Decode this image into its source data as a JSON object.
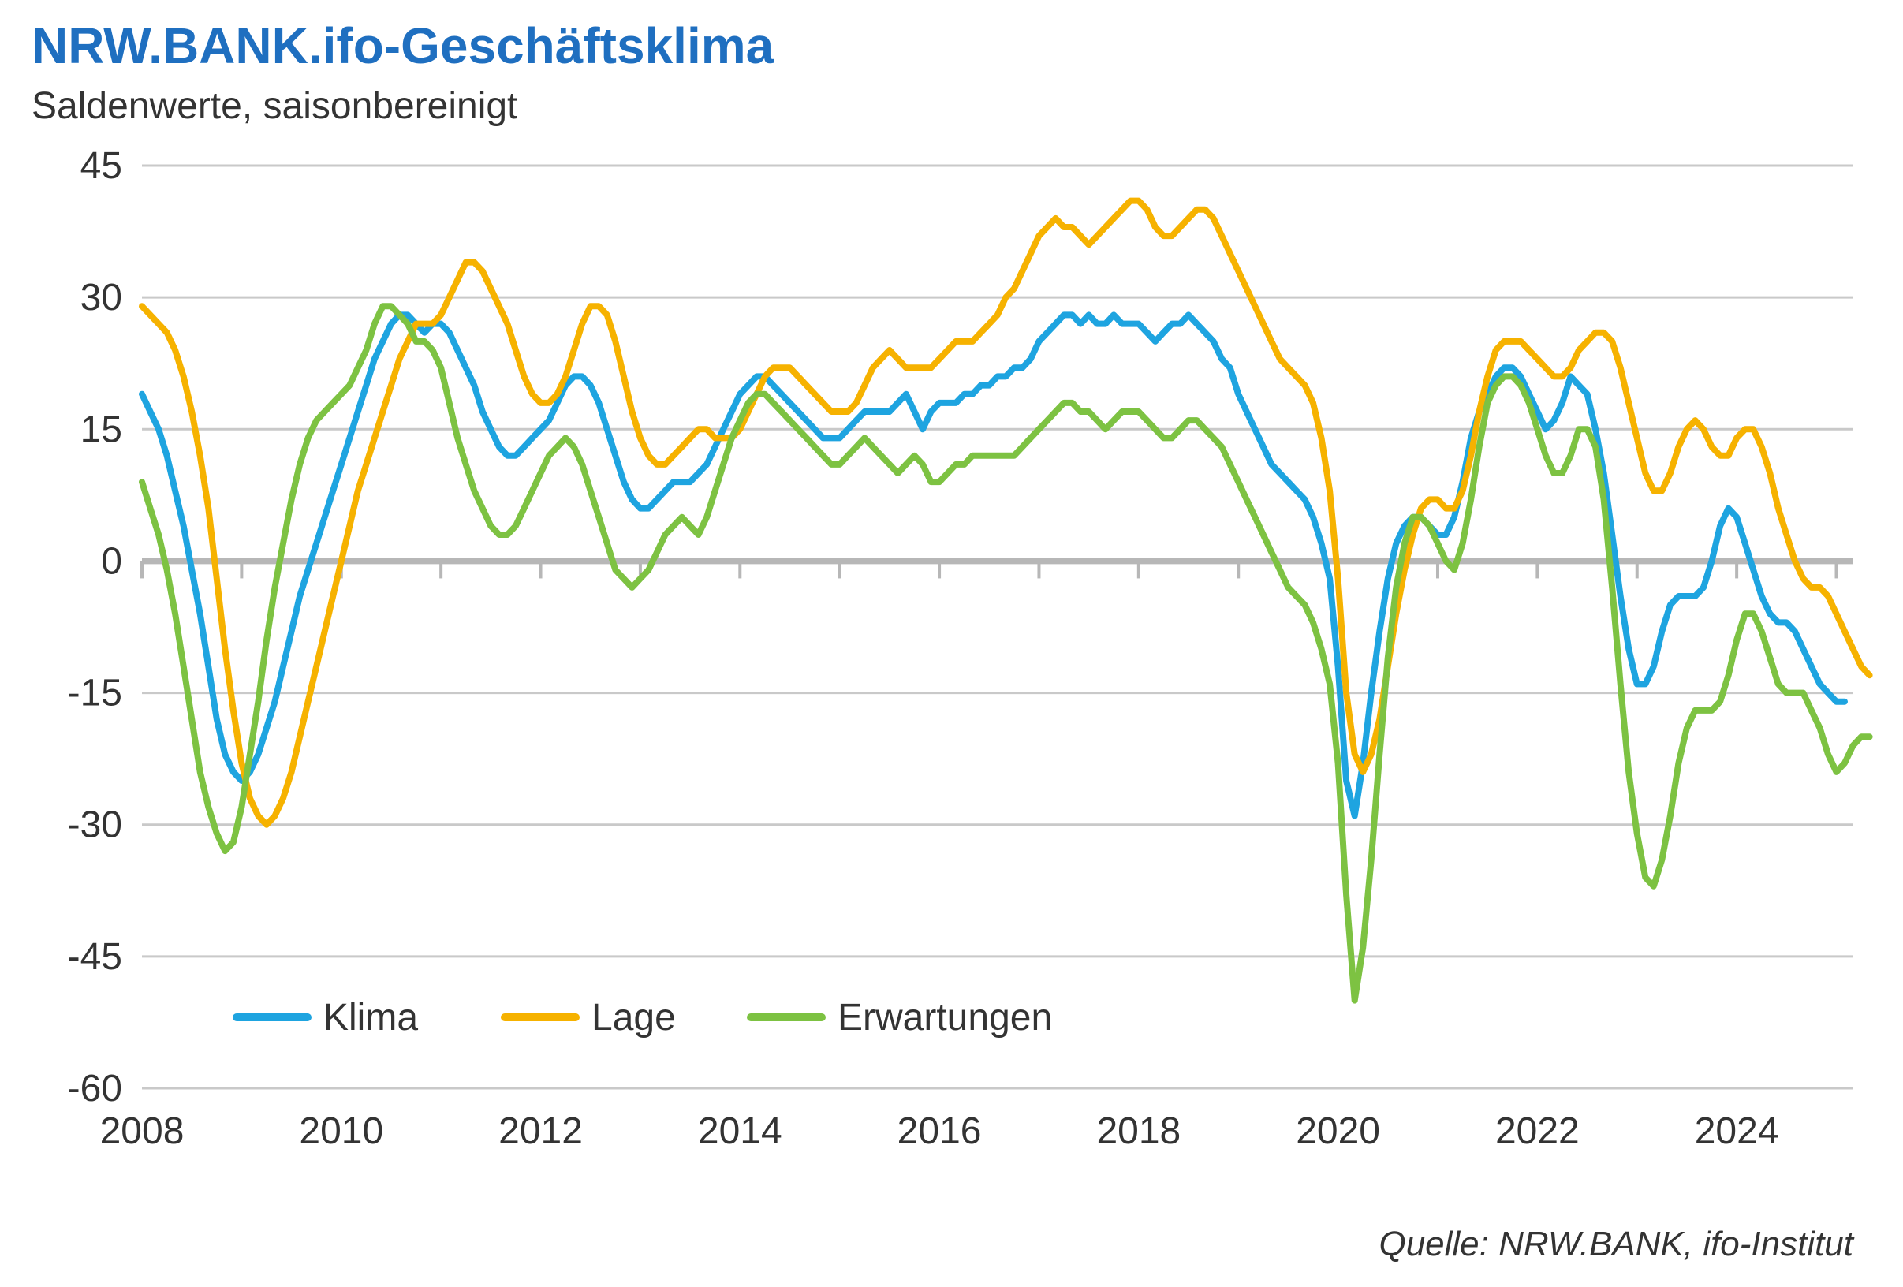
{
  "chart": {
    "type": "line",
    "title": "NRW.BANK.ifo-Geschäftsklima",
    "subtitle": "Saldenwerte, saisonbereinigt",
    "source": "Quelle: NRW.BANK, ifo-Institut",
    "background_color": "#ffffff",
    "grid_color": "#c9c9c9",
    "zero_line_color": "#b7b7b7",
    "title_color": "#1f6fc0",
    "text_color": "#333333",
    "title_fontsize": 64,
    "subtitle_fontsize": 48,
    "axis_fontsize": 48,
    "legend_fontsize": 48,
    "source_fontsize": 44,
    "line_width": 8,
    "xlim": [
      2008,
      2025.17
    ],
    "ylim": [
      -60,
      45
    ],
    "xticks": [
      2008,
      2010,
      2012,
      2014,
      2016,
      2018,
      2020,
      2022,
      2024
    ],
    "yticks": [
      -60,
      -45,
      -30,
      -15,
      0,
      15,
      30,
      45
    ],
    "xtick_minor_step": 1,
    "legend": {
      "entries": [
        {
          "label": "Klima",
          "color": "#1ea4e0"
        },
        {
          "label": "Lage",
          "color": "#f6b200"
        },
        {
          "label": "Erwartungen",
          "color": "#7dc242"
        }
      ]
    },
    "x_start": 2008,
    "x_step_months": 1,
    "series": [
      {
        "name": "Klima",
        "color": "#1ea4e0",
        "values": [
          19,
          17,
          15,
          12,
          8,
          4,
          -1,
          -6,
          -12,
          -18,
          -22,
          -24,
          -25,
          -24,
          -22,
          -19,
          -16,
          -12,
          -8,
          -4,
          -1,
          2,
          5,
          8,
          11,
          14,
          17,
          20,
          23,
          25,
          27,
          28,
          28,
          27,
          26,
          27,
          27,
          26,
          24,
          22,
          20,
          17,
          15,
          13,
          12,
          12,
          13,
          14,
          15,
          16,
          18,
          20,
          21,
          21,
          20,
          18,
          15,
          12,
          9,
          7,
          6,
          6,
          7,
          8,
          9,
          9,
          9,
          10,
          11,
          13,
          15,
          17,
          19,
          20,
          21,
          21,
          20,
          19,
          18,
          17,
          16,
          15,
          14,
          14,
          14,
          15,
          16,
          17,
          17,
          17,
          17,
          18,
          19,
          17,
          15,
          17,
          18,
          18,
          18,
          19,
          19,
          20,
          20,
          21,
          21,
          22,
          22,
          23,
          25,
          26,
          27,
          28,
          28,
          27,
          28,
          27,
          27,
          28,
          27,
          27,
          27,
          26,
          25,
          26,
          27,
          27,
          28,
          27,
          26,
          25,
          23,
          22,
          19,
          17,
          15,
          13,
          11,
          10,
          9,
          8,
          7,
          5,
          2,
          -2,
          -12,
          -25,
          -29,
          -23,
          -15,
          -8,
          -2,
          2,
          4,
          5,
          5,
          4,
          3,
          3,
          5,
          9,
          14,
          17,
          19,
          21,
          22,
          22,
          21,
          19,
          17,
          15,
          16,
          18,
          21,
          20,
          19,
          15,
          10,
          3,
          -4,
          -10,
          -14,
          -14,
          -12,
          -8,
          -5,
          -4,
          -4,
          -4,
          -3,
          0,
          4,
          6,
          5,
          2,
          -1,
          -4,
          -6,
          -7,
          -7,
          -8,
          -10,
          -12,
          -14,
          -15,
          -16,
          -16
        ]
      },
      {
        "name": "Lage",
        "color": "#f6b200",
        "values": [
          29,
          28,
          27,
          26,
          24,
          21,
          17,
          12,
          6,
          -2,
          -10,
          -17,
          -23,
          -27,
          -29,
          -30,
          -29,
          -27,
          -24,
          -20,
          -16,
          -12,
          -8,
          -4,
          0,
          4,
          8,
          11,
          14,
          17,
          20,
          23,
          25,
          27,
          27,
          27,
          28,
          30,
          32,
          34,
          34,
          33,
          31,
          29,
          27,
          24,
          21,
          19,
          18,
          18,
          19,
          21,
          24,
          27,
          29,
          29,
          28,
          25,
          21,
          17,
          14,
          12,
          11,
          11,
          12,
          13,
          14,
          15,
          15,
          14,
          14,
          14,
          15,
          17,
          19,
          21,
          22,
          22,
          22,
          21,
          20,
          19,
          18,
          17,
          17,
          17,
          18,
          20,
          22,
          23,
          24,
          23,
          22,
          22,
          22,
          22,
          23,
          24,
          25,
          25,
          25,
          26,
          27,
          28,
          30,
          31,
          33,
          35,
          37,
          38,
          39,
          38,
          38,
          37,
          36,
          37,
          38,
          39,
          40,
          41,
          41,
          40,
          38,
          37,
          37,
          38,
          39,
          40,
          40,
          39,
          37,
          35,
          33,
          31,
          29,
          27,
          25,
          23,
          22,
          21,
          20,
          18,
          14,
          8,
          -2,
          -15,
          -22,
          -24,
          -22,
          -18,
          -12,
          -6,
          -1,
          3,
          6,
          7,
          7,
          6,
          6,
          8,
          12,
          17,
          21,
          24,
          25,
          25,
          25,
          24,
          23,
          22,
          21,
          21,
          22,
          24,
          25,
          26,
          26,
          25,
          22,
          18,
          14,
          10,
          8,
          8,
          10,
          13,
          15,
          16,
          15,
          13,
          12,
          12,
          14,
          15,
          15,
          13,
          10,
          6,
          3,
          0,
          -2,
          -3,
          -3,
          -4,
          -6,
          -8,
          -10,
          -12,
          -13
        ]
      },
      {
        "name": "Erwartungen",
        "color": "#7dc242",
        "values": [
          9,
          6,
          3,
          -1,
          -6,
          -12,
          -18,
          -24,
          -28,
          -31,
          -33,
          -32,
          -28,
          -22,
          -16,
          -9,
          -3,
          2,
          7,
          11,
          14,
          16,
          17,
          18,
          19,
          20,
          22,
          24,
          27,
          29,
          29,
          28,
          27,
          25,
          25,
          24,
          22,
          18,
          14,
          11,
          8,
          6,
          4,
          3,
          3,
          4,
          6,
          8,
          10,
          12,
          13,
          14,
          13,
          11,
          8,
          5,
          2,
          -1,
          -2,
          -3,
          -2,
          -1,
          1,
          3,
          4,
          5,
          4,
          3,
          5,
          8,
          11,
          14,
          16,
          18,
          19,
          19,
          18,
          17,
          16,
          15,
          14,
          13,
          12,
          11,
          11,
          12,
          13,
          14,
          13,
          12,
          11,
          10,
          11,
          12,
          11,
          9,
          9,
          10,
          11,
          11,
          12,
          12,
          12,
          12,
          12,
          12,
          13,
          14,
          15,
          16,
          17,
          18,
          18,
          17,
          17,
          16,
          15,
          16,
          17,
          17,
          17,
          16,
          15,
          14,
          14,
          15,
          16,
          16,
          15,
          14,
          13,
          11,
          9,
          7,
          5,
          3,
          1,
          -1,
          -3,
          -4,
          -5,
          -7,
          -10,
          -14,
          -23,
          -38,
          -50,
          -44,
          -34,
          -22,
          -11,
          -3,
          2,
          5,
          5,
          4,
          2,
          0,
          -1,
          2,
          7,
          13,
          18,
          20,
          21,
          21,
          20,
          18,
          15,
          12,
          10,
          10,
          12,
          15,
          15,
          13,
          7,
          -3,
          -14,
          -24,
          -31,
          -36,
          -37,
          -34,
          -29,
          -23,
          -19,
          -17,
          -17,
          -17,
          -16,
          -13,
          -9,
          -6,
          -6,
          -8,
          -11,
          -14,
          -15,
          -15,
          -15,
          -17,
          -19,
          -22,
          -24,
          -23,
          -21,
          -20,
          -20
        ]
      }
    ]
  }
}
